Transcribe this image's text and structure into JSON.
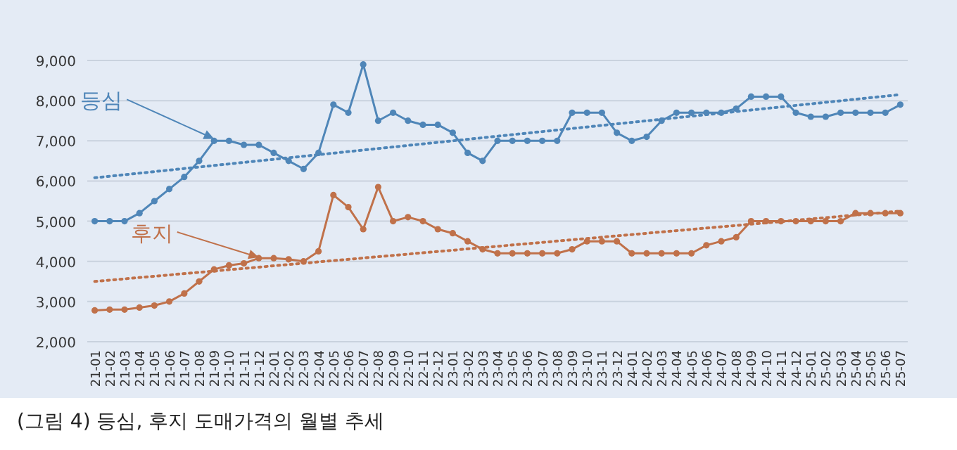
{
  "chart_data": {
    "type": "line",
    "title": "(그림 4) 등심, 후지 도매가격의 월별 추세",
    "categories": [
      "21-01",
      "21-02",
      "21-03",
      "21-04",
      "21-05",
      "21-06",
      "21-07",
      "21-08",
      "21-09",
      "21-10",
      "21-11",
      "21-12",
      "22-01",
      "22-02",
      "22-03",
      "22-04",
      "22-05",
      "22-06",
      "22-07",
      "22-08",
      "22-09",
      "22-10",
      "22-11",
      "22-12",
      "23-01",
      "23-02",
      "23-03",
      "23-04",
      "23-05",
      "23-06",
      "23-07",
      "23-08",
      "23-09",
      "23-10",
      "23-11",
      "23-12",
      "24-01",
      "24-02",
      "24-03",
      "24-04",
      "24-05",
      "24-06",
      "24-07",
      "24-08",
      "24-09",
      "24-10",
      "24-11",
      "24-12",
      "25-01",
      "25-02",
      "25-03",
      "25-04",
      "25-05",
      "25-06",
      "25-07"
    ],
    "series": [
      {
        "color": "#4f86b8",
        "values": [
          5000,
          5000,
          5000,
          5200,
          5500,
          5800,
          6100,
          6500,
          7000,
          7000,
          6900,
          6900,
          6700,
          6500,
          6300,
          6700,
          7900,
          7700,
          8900,
          7500,
          7700,
          7500,
          7400,
          7400,
          7200,
          6700,
          6500,
          7000,
          7000,
          7000,
          7000,
          7000,
          7700,
          7700,
          7700,
          7200,
          7000,
          7100,
          7500,
          7700,
          7700,
          7700,
          7700,
          7800,
          8100,
          8100,
          8100,
          7700,
          7600,
          7600,
          7700,
          7700,
          7700,
          7700,
          7900
        ]
      },
      {
        "color": "#c0714a",
        "values": [
          2780,
          2800,
          2800,
          2850,
          2900,
          3000,
          3200,
          3500,
          3800,
          3900,
          3950,
          4080,
          4080,
          4050,
          4000,
          4250,
          5650,
          5350,
          4800,
          5850,
          5000,
          5100,
          5000,
          4800,
          4700,
          4500,
          4300,
          4200,
          4200,
          4200,
          4200,
          4200,
          4300,
          4500,
          4500,
          4500,
          4200,
          4200,
          4200,
          4200,
          4200,
          4400,
          4500,
          4600,
          5000,
          5000,
          5000,
          5000,
          5000,
          5000,
          5000,
          5200,
          5200,
          5200,
          5200
        ]
      },
      {
        "color": "#4f86b8",
        "type": "line",
        "line_style": "dotted",
        "marker": "none",
        "x": [
          "21-01",
          "25-07"
        ],
        "values": [
          6080,
          8150
        ]
      },
      {
        "color": "#c0714a",
        "type": "line",
        "line_style": "dotted",
        "marker": "none",
        "x": [
          "21-01",
          "25-07"
        ],
        "values": [
          3500,
          5250
        ]
      }
    ],
    "annotations": [
      {
        "text": "등심",
        "x": "21-09",
        "y": 7050
      },
      {
        "text": "후지",
        "x": "21-12",
        "y": 4100
      }
    ],
    "ylim": [
      2000,
      9000
    ],
    "yticks": [
      {
        "value": 2000,
        "label": "2,000"
      },
      {
        "value": 3000,
        "label": "3,000"
      },
      {
        "value": 4000,
        "label": "4,000"
      },
      {
        "value": 5000,
        "label": "5,000"
      },
      {
        "value": 6000,
        "label": "6,000"
      },
      {
        "value": 7000,
        "label": "7,000"
      },
      {
        "value": 8000,
        "label": "8,000"
      },
      {
        "value": 9000,
        "label": "9,000"
      }
    ],
    "grid": "y",
    "marker": "circle",
    "line_style": "solid"
  }
}
